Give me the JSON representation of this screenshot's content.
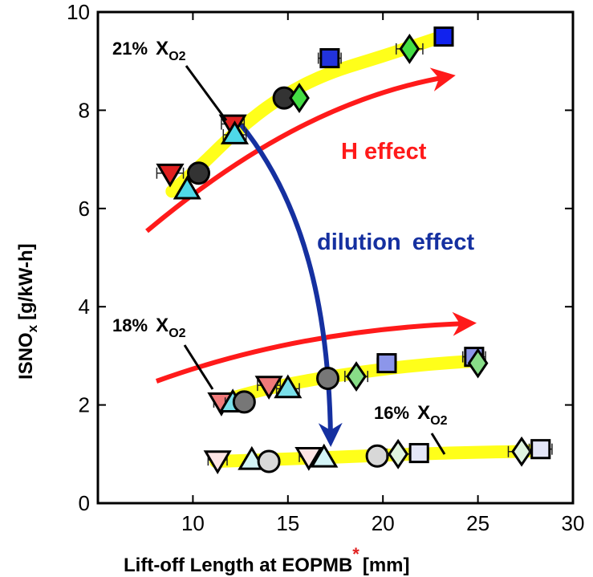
{
  "chart_data": {
    "type": "scatter",
    "title": "",
    "xlabel": "Lift-off Length at EOPMB",
    "xlabel_marker": "*",
    "xlabel_unit": "[mm]",
    "ylabel_main": "ISNO",
    "ylabel_sub": "x",
    "ylabel_unit": "[g/kW-h]",
    "xlim": [
      5,
      30
    ],
    "ylim": [
      0,
      10
    ],
    "xticks": [
      "10",
      "15",
      "20",
      "25",
      "30"
    ],
    "yticks": [
      "0",
      "2",
      "4",
      "6",
      "8",
      "10"
    ],
    "grid": false,
    "groups": [
      {
        "label_pct": "21%",
        "label_sym": "X",
        "label_sub": "O2",
        "trend": [
          [
            8.9,
            6.35
          ],
          [
            10.5,
            6.9
          ],
          [
            12.2,
            7.55
          ],
          [
            14.5,
            8.25
          ],
          [
            17,
            8.75
          ],
          [
            20,
            9.1
          ],
          [
            23.1,
            9.5
          ]
        ],
        "points": [
          {
            "marker": "tri-down",
            "x": 8.8,
            "y": 6.72,
            "color": "#e02020",
            "xerr": 0.7
          },
          {
            "marker": "tri-up",
            "x": 9.7,
            "y": 6.38,
            "color": "#4fd8e8",
            "xerr": 0
          },
          {
            "marker": "circle",
            "x": 10.3,
            "y": 6.72,
            "color": "#333333",
            "xerr": 0
          },
          {
            "marker": "tri-down",
            "x": 12.1,
            "y": 7.72,
            "color": "#e02020",
            "xerr": 0.6
          },
          {
            "marker": "tri-up",
            "x": 12.2,
            "y": 7.5,
            "color": "#4fd8e8",
            "xerr": 0.6
          },
          {
            "marker": "circle",
            "x": 14.8,
            "y": 8.25,
            "color": "#333333",
            "xerr": 0
          },
          {
            "marker": "diamond",
            "x": 15.6,
            "y": 8.25,
            "color": "#44dd44",
            "xerr": 0
          },
          {
            "marker": "square",
            "x": 17.2,
            "y": 9.06,
            "color": "#2233dd",
            "xerr": 0.6
          },
          {
            "marker": "diamond",
            "x": 21.4,
            "y": 9.25,
            "color": "#44dd44",
            "xerr": 0.7
          },
          {
            "marker": "square",
            "x": 23.2,
            "y": 9.5,
            "color": "#1122ee",
            "xerr": 0
          }
        ]
      },
      {
        "label_pct": "18%",
        "label_sym": "X",
        "label_sub": "O2",
        "trend": [
          [
            11.5,
            2.08
          ],
          [
            13.5,
            2.3
          ],
          [
            16,
            2.5
          ],
          [
            19,
            2.68
          ],
          [
            22,
            2.82
          ],
          [
            25,
            2.9
          ]
        ],
        "points": [
          {
            "marker": "tri-down",
            "x": 11.5,
            "y": 2.06,
            "color": "#f07a7a",
            "xerr": 0.4
          },
          {
            "marker": "tri-up",
            "x": 12.1,
            "y": 2.04,
            "color": "#7ae0ea",
            "xerr": 0.4
          },
          {
            "marker": "circle",
            "x": 12.7,
            "y": 2.06,
            "color": "#777777",
            "xerr": 0.4
          },
          {
            "marker": "tri-down",
            "x": 14.0,
            "y": 2.4,
            "color": "#f07a7a",
            "xerr": 0.6
          },
          {
            "marker": "tri-up",
            "x": 15.0,
            "y": 2.33,
            "color": "#7ae0ea",
            "xerr": 0.6
          },
          {
            "marker": "circle",
            "x": 17.1,
            "y": 2.54,
            "color": "#777777",
            "xerr": 0
          },
          {
            "marker": "diamond",
            "x": 18.6,
            "y": 2.58,
            "color": "#88dd88",
            "xerr": 0.6
          },
          {
            "marker": "square",
            "x": 20.2,
            "y": 2.85,
            "color": "#8c96ea",
            "xerr": 0.5
          },
          {
            "marker": "square",
            "x": 24.8,
            "y": 2.98,
            "color": "#8c96ea",
            "xerr": 0.6
          },
          {
            "marker": "diamond",
            "x": 25.0,
            "y": 2.85,
            "color": "#88dd88",
            "xerr": 0
          }
        ]
      },
      {
        "label_pct": "16%",
        "label_sym": "X",
        "label_sub": "O2",
        "trend": [
          [
            11.2,
            0.85
          ],
          [
            15,
            0.9
          ],
          [
            19,
            0.96
          ],
          [
            23,
            1.02
          ],
          [
            27,
            1.05
          ],
          [
            28.3,
            1.07
          ]
        ],
        "points": [
          {
            "marker": "tri-down",
            "x": 11.3,
            "y": 0.88,
            "color": "#fde4e4",
            "xerr": 0.5
          },
          {
            "marker": "tri-up",
            "x": 13.1,
            "y": 0.87,
            "color": "#d4f4f6",
            "xerr": 0
          },
          {
            "marker": "circle",
            "x": 14.0,
            "y": 0.85,
            "color": "#d8d8d8",
            "xerr": 0
          },
          {
            "marker": "tri-down",
            "x": 16.1,
            "y": 0.95,
            "color": "#fde4e4",
            "xerr": 0.5
          },
          {
            "marker": "tri-up",
            "x": 16.9,
            "y": 0.92,
            "color": "#d4f4f6",
            "xerr": 0
          },
          {
            "marker": "circle",
            "x": 19.7,
            "y": 0.96,
            "color": "#d8d8d8",
            "xerr": 0
          },
          {
            "marker": "diamond",
            "x": 20.8,
            "y": 1.0,
            "color": "#e0f4e0",
            "xerr": 0.6
          },
          {
            "marker": "square",
            "x": 21.9,
            "y": 1.02,
            "color": "#e4e6f8",
            "xerr": 0.5
          },
          {
            "marker": "diamond",
            "x": 27.3,
            "y": 1.05,
            "color": "#e0f4e0",
            "xerr": 0.7
          },
          {
            "marker": "square",
            "x": 28.3,
            "y": 1.1,
            "color": "#e4e6f8",
            "xerr": 0.6
          }
        ]
      }
    ],
    "effects": [
      {
        "label": "H effect",
        "color": "#ff1a1a"
      },
      {
        "label": "dilution effect",
        "color": "#1530a0"
      }
    ]
  }
}
